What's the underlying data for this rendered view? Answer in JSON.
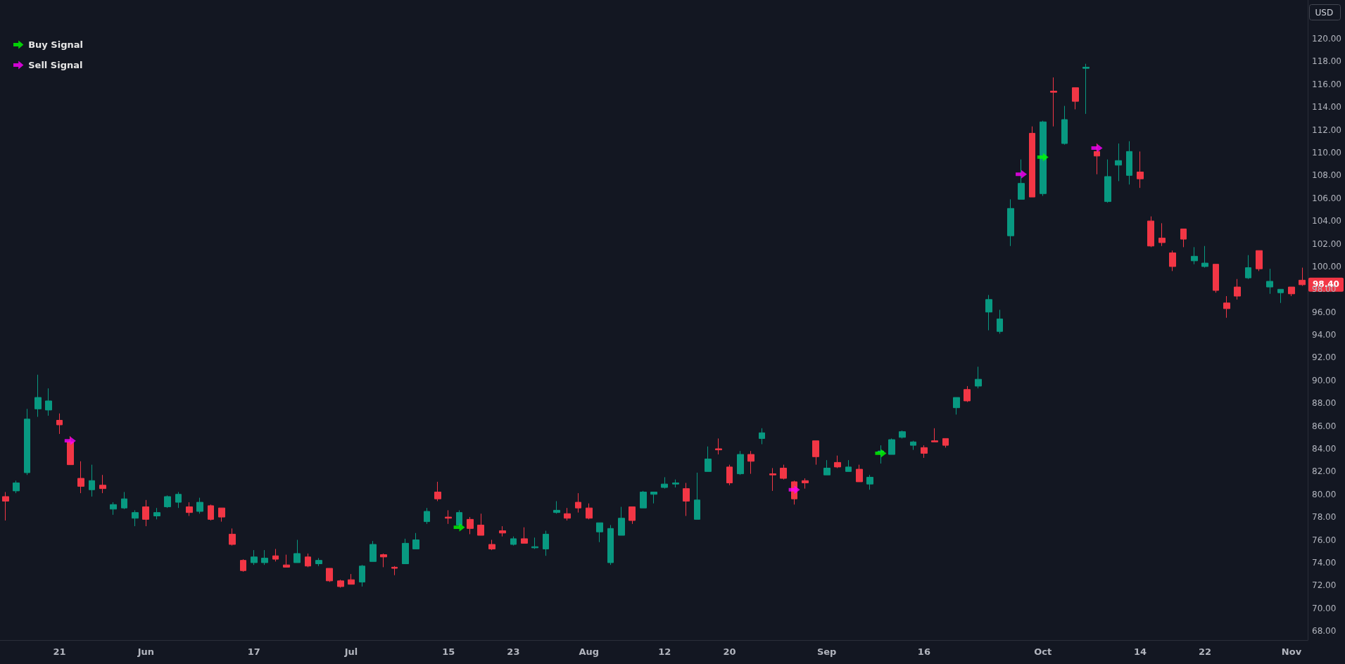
{
  "chart_data": {
    "type": "candlestick",
    "ylabel": "USD",
    "legend": "top left",
    "grid": false,
    "categories": [
      null,
      null,
      null,
      null,
      null,
      "21",
      null,
      null,
      null,
      null,
      null,
      null,
      null,
      "Jun",
      null,
      null,
      null,
      null,
      null,
      null,
      null,
      null,
      null,
      "17",
      null,
      null,
      null,
      null,
      null,
      null,
      null,
      null,
      "Jul",
      null,
      null,
      null,
      null,
      null,
      null,
      null,
      null,
      "15",
      null,
      null,
      null,
      null,
      null,
      "23",
      null,
      null,
      null,
      null,
      null,
      null,
      "Aug",
      null,
      null,
      null,
      null,
      null,
      null,
      "12",
      null,
      null,
      null,
      null,
      null,
      "20",
      null,
      null,
      null,
      null,
      null,
      null,
      null,
      null,
      "Sep",
      null,
      null,
      null,
      null,
      null,
      null,
      null,
      null,
      "16",
      null,
      null,
      null,
      null,
      null,
      null,
      null,
      null,
      null,
      null,
      "Oct",
      null,
      null,
      null,
      null,
      null,
      null,
      null,
      null,
      "14",
      null,
      null,
      null,
      null,
      null,
      "22",
      null,
      null,
      null,
      null,
      null,
      null,
      null,
      "Nov",
      null
    ],
    "ylim": [
      67.2,
      123.4
    ],
    "yticks": [
      {
        "value": 68,
        "label": "68.00"
      },
      {
        "value": 70,
        "label": "70.00"
      },
      {
        "value": 72,
        "label": "72.00"
      },
      {
        "value": 74,
        "label": "74.00"
      },
      {
        "value": 76,
        "label": "76.00"
      },
      {
        "value": 78,
        "label": "78.00"
      },
      {
        "value": 80,
        "label": "80.00"
      },
      {
        "value": 82,
        "label": "82.00"
      },
      {
        "value": 84,
        "label": "84.00"
      },
      {
        "value": 86,
        "label": "86.00"
      },
      {
        "value": 88,
        "label": "88.00"
      },
      {
        "value": 90,
        "label": "90.00"
      },
      {
        "value": 92,
        "label": "92.00"
      },
      {
        "value": 94,
        "label": "94.00"
      },
      {
        "value": 96,
        "label": "96.00"
      },
      {
        "value": 98,
        "label": "98.00"
      },
      {
        "value": 100,
        "label": "100.00"
      },
      {
        "value": 102,
        "label": "102.00"
      },
      {
        "value": 104,
        "label": "104.00"
      },
      {
        "value": 106,
        "label": "106.00"
      },
      {
        "value": 108,
        "label": "108.00"
      },
      {
        "value": 110,
        "label": "110.00"
      },
      {
        "value": 112,
        "label": "112.00"
      },
      {
        "value": 114,
        "label": "114.00"
      },
      {
        "value": 116,
        "label": "116.00"
      },
      {
        "value": 118,
        "label": "118.00"
      },
      {
        "value": 120,
        "label": "120.00"
      }
    ],
    "annotations": [
      "98.40"
    ],
    "series": [
      {
        "ohlc": [
          [
            79.8,
            80.2,
            77.7,
            79.4
          ],
          [
            80.3,
            81.2,
            80.1,
            81.0
          ],
          [
            81.9,
            87.5,
            81.7,
            86.6
          ],
          [
            87.5,
            90.5,
            86.8,
            88.5
          ],
          [
            87.4,
            89.3,
            86.9,
            88.2
          ],
          [
            86.5,
            87.1,
            85.3,
            86.1
          ],
          [
            84.6,
            85.1,
            82.6,
            82.6
          ],
          [
            81.4,
            82.9,
            80.1,
            80.7
          ],
          [
            80.4,
            82.6,
            79.8,
            81.2
          ],
          [
            80.8,
            81.7,
            80.1,
            80.5
          ],
          [
            78.7,
            79.3,
            78.2,
            79.1
          ],
          [
            78.8,
            80.2,
            78.7,
            79.6
          ],
          [
            77.9,
            78.6,
            77.2,
            78.4
          ],
          [
            78.9,
            79.5,
            77.2,
            77.8
          ],
          [
            78.1,
            78.8,
            77.8,
            78.4
          ],
          [
            78.9,
            79.9,
            78.8,
            79.8
          ],
          [
            79.3,
            80.2,
            78.8,
            80.0
          ],
          [
            78.9,
            79.3,
            78.1,
            78.4
          ],
          [
            78.5,
            79.7,
            78.3,
            79.3
          ],
          [
            79.0,
            79.1,
            77.7,
            77.8
          ],
          [
            78.8,
            78.8,
            77.6,
            78.0
          ],
          [
            76.5,
            77.0,
            75.5,
            75.6
          ],
          [
            74.2,
            74.3,
            73.2,
            73.3
          ],
          [
            74.0,
            75.1,
            73.8,
            74.5
          ],
          [
            74.0,
            75.1,
            73.8,
            74.4
          ],
          [
            74.6,
            75.2,
            74.1,
            74.3
          ],
          [
            73.8,
            74.7,
            73.6,
            73.6
          ],
          [
            74.0,
            76.0,
            74.0,
            74.8
          ],
          [
            74.5,
            74.8,
            73.6,
            73.7
          ],
          [
            73.9,
            74.4,
            73.7,
            74.2
          ],
          [
            73.5,
            73.5,
            72.3,
            72.4
          ],
          [
            72.4,
            72.5,
            71.8,
            71.9
          ],
          [
            72.5,
            73.0,
            72.1,
            72.1
          ],
          [
            72.3,
            73.8,
            71.9,
            73.7
          ],
          [
            74.1,
            75.9,
            74.1,
            75.6
          ],
          [
            74.7,
            74.8,
            73.6,
            74.5
          ],
          [
            73.6,
            73.7,
            72.9,
            73.5
          ],
          [
            73.9,
            76.1,
            73.9,
            75.7
          ],
          [
            75.2,
            76.6,
            75.2,
            76.0
          ],
          [
            77.6,
            78.8,
            77.4,
            78.5
          ],
          [
            80.2,
            81.1,
            79.4,
            79.6
          ],
          [
            78.0,
            78.6,
            77.4,
            77.9
          ],
          [
            77.3,
            78.6,
            77.1,
            78.4
          ],
          [
            77.8,
            78.0,
            76.5,
            77.0
          ],
          [
            77.3,
            78.3,
            76.4,
            76.4
          ],
          [
            75.6,
            76.0,
            75.1,
            75.2
          ],
          [
            76.8,
            77.2,
            76.3,
            76.6
          ],
          [
            75.6,
            76.3,
            75.5,
            76.1
          ],
          [
            76.1,
            77.1,
            75.7,
            75.7
          ],
          [
            75.3,
            76.2,
            75.2,
            75.4
          ],
          [
            75.2,
            76.8,
            74.6,
            76.5
          ],
          [
            78.4,
            79.4,
            78.3,
            78.6
          ],
          [
            78.3,
            78.8,
            77.7,
            77.9
          ],
          [
            79.3,
            80.1,
            78.4,
            78.8
          ],
          [
            78.8,
            79.2,
            77.8,
            77.9
          ],
          [
            76.7,
            77.5,
            75.8,
            77.5
          ],
          [
            74.0,
            77.3,
            73.8,
            77.0
          ],
          [
            76.4,
            78.9,
            76.4,
            77.9
          ],
          [
            78.9,
            78.9,
            77.4,
            77.7
          ],
          [
            78.8,
            80.3,
            78.8,
            80.2
          ],
          [
            80.0,
            80.2,
            79.2,
            80.2
          ],
          [
            80.6,
            81.5,
            80.5,
            80.9
          ],
          [
            80.9,
            81.3,
            80.6,
            81.0
          ],
          [
            80.5,
            81.0,
            78.1,
            79.4
          ],
          [
            77.8,
            81.9,
            77.8,
            79.5
          ],
          [
            82.0,
            84.2,
            82.0,
            83.1
          ],
          [
            84.0,
            84.9,
            83.5,
            83.9
          ],
          [
            82.4,
            82.6,
            80.8,
            81.0
          ],
          [
            81.8,
            83.8,
            81.7,
            83.5
          ],
          [
            83.5,
            83.8,
            81.8,
            82.9
          ],
          [
            84.9,
            85.8,
            84.4,
            85.4
          ],
          [
            81.8,
            82.3,
            80.3,
            81.7
          ],
          [
            82.3,
            82.6,
            81.3,
            81.4
          ],
          [
            81.1,
            81.2,
            79.1,
            79.6
          ],
          [
            81.2,
            81.4,
            80.5,
            81.0
          ],
          [
            84.7,
            84.7,
            82.6,
            83.3
          ],
          [
            81.7,
            83.0,
            81.7,
            82.3
          ],
          [
            82.8,
            83.4,
            82.3,
            82.4
          ],
          [
            82.0,
            83.0,
            82.0,
            82.4
          ],
          [
            82.2,
            82.6,
            81.1,
            81.1
          ],
          [
            80.9,
            81.7,
            80.4,
            81.5
          ],
          [
            83.7,
            84.3,
            82.7,
            83.8
          ],
          [
            83.5,
            84.9,
            83.5,
            84.8
          ],
          [
            85.0,
            85.6,
            84.9,
            85.5
          ],
          [
            84.3,
            84.7,
            83.9,
            84.6
          ],
          [
            84.1,
            84.3,
            83.2,
            83.6
          ],
          [
            84.7,
            85.8,
            84.6,
            84.6
          ],
          [
            84.9,
            84.9,
            84.1,
            84.3
          ],
          [
            87.6,
            88.5,
            87.0,
            88.5
          ],
          [
            89.2,
            89.5,
            88.1,
            88.2
          ],
          [
            89.5,
            91.2,
            89.3,
            90.1
          ],
          [
            96.0,
            97.5,
            94.4,
            97.1
          ],
          [
            94.3,
            96.2,
            94.1,
            95.4
          ],
          [
            102.7,
            105.9,
            101.8,
            105.1
          ],
          [
            105.9,
            109.4,
            105.9,
            107.3
          ],
          [
            111.7,
            112.3,
            106.1,
            106.1
          ],
          [
            106.4,
            112.8,
            106.2,
            112.7
          ],
          [
            115.4,
            116.6,
            112.3,
            115.3
          ],
          [
            110.8,
            114.1,
            110.7,
            112.9
          ],
          [
            115.7,
            115.7,
            113.8,
            114.5
          ],
          [
            117.4,
            117.8,
            113.4,
            117.5
          ],
          [
            110.1,
            110.8,
            108.1,
            109.7
          ],
          [
            105.7,
            109.4,
            105.6,
            107.9
          ],
          [
            108.9,
            110.8,
            107.5,
            109.3
          ],
          [
            108.0,
            111.0,
            107.2,
            110.1
          ],
          [
            108.3,
            110.1,
            106.9,
            107.7
          ],
          [
            104.0,
            104.4,
            101.7,
            101.8
          ],
          [
            102.5,
            103.8,
            101.8,
            102.1
          ],
          [
            101.2,
            101.4,
            99.6,
            100.0
          ],
          [
            103.3,
            103.3,
            101.7,
            102.4
          ],
          [
            100.5,
            101.7,
            100.2,
            100.9
          ],
          [
            100.0,
            101.8,
            99.9,
            100.3
          ],
          [
            100.2,
            100.2,
            97.7,
            97.9
          ],
          [
            96.8,
            97.4,
            95.5,
            96.3
          ],
          [
            98.2,
            98.9,
            97.1,
            97.4
          ],
          [
            99.0,
            101.0,
            98.9,
            99.9
          ],
          [
            101.4,
            101.4,
            99.6,
            99.8
          ],
          [
            98.2,
            99.8,
            97.6,
            98.7
          ],
          [
            97.7,
            98.0,
            96.8,
            98.0
          ],
          [
            98.2,
            98.2,
            97.4,
            97.6
          ],
          [
            98.8,
            99.9,
            98.3,
            98.4
          ]
        ],
        "colors": [
          "#f23645",
          "#089981",
          "#089981",
          "#089981",
          "#089981",
          "#f23645",
          "#f23645",
          "#f23645",
          "#089981",
          "#f23645",
          "#089981",
          "#089981",
          "#089981",
          "#f23645",
          "#089981",
          "#089981",
          "#089981",
          "#f23645",
          "#089981",
          "#f23645",
          "#f23645",
          "#f23645",
          "#f23645",
          "#089981",
          "#089981",
          "#f23645",
          "#f23645",
          "#089981",
          "#f23645",
          "#089981",
          "#f23645",
          "#f23645",
          "#f23645",
          "#089981",
          "#089981",
          "#f23645",
          "#f23645",
          "#089981",
          "#089981",
          "#089981",
          "#f23645",
          "#f23645",
          "#089981",
          "#f23645",
          "#f23645",
          "#f23645",
          "#f23645",
          "#089981",
          "#f23645",
          "#089981",
          "#089981",
          "#089981",
          "#f23645",
          "#f23645",
          "#f23645",
          "#089981",
          "#089981",
          "#089981",
          "#f23645",
          "#089981",
          "#089981",
          "#089981",
          "#089981",
          "#f23645",
          "#089981",
          "#089981",
          "#f23645",
          "#f23645",
          "#089981",
          "#f23645",
          "#089981",
          "#f23645",
          "#f23645",
          "#f23645",
          "#f23645",
          "#f23645",
          "#089981",
          "#f23645",
          "#089981",
          "#f23645",
          "#089981",
          "#089981",
          "#089981",
          "#089981",
          "#089981",
          "#f23645",
          "#f23645",
          "#f23645",
          "#089981",
          "#f23645",
          "#089981",
          "#089981",
          "#089981",
          "#089981",
          "#089981",
          "#f23645",
          "#089981",
          "#f23645",
          "#089981",
          "#f23645",
          "#089981",
          "#f23645",
          "#089981",
          "#089981",
          "#089981",
          "#f23645",
          "#f23645",
          "#f23645",
          "#f23645",
          "#f23645",
          "#089981",
          "#089981",
          "#f23645",
          "#f23645",
          "#f23645",
          "#089981",
          "#f23645",
          "#089981",
          "#089981",
          "#f23645",
          "#f23645"
        ]
      },
      {
        "type": "scatter",
        "name": "Buy Signal",
        "color": "#00ff00",
        "values": [
          null,
          null,
          null,
          null,
          null,
          null,
          null,
          null,
          null,
          null,
          null,
          null,
          null,
          null,
          null,
          null,
          null,
          null,
          null,
          null,
          null,
          null,
          null,
          null,
          null,
          null,
          null,
          null,
          null,
          null,
          null,
          null,
          null,
          null,
          null,
          null,
          null,
          null,
          null,
          null,
          null,
          null,
          77.1,
          null,
          null,
          null,
          null,
          null,
          null,
          null,
          null,
          null,
          null,
          null,
          null,
          null,
          null,
          null,
          null,
          null,
          null,
          null,
          null,
          null,
          null,
          null,
          null,
          null,
          null,
          null,
          null,
          null,
          null,
          null,
          null,
          null,
          null,
          null,
          null,
          null,
          null,
          83.6,
          null,
          null,
          null,
          null,
          null,
          null,
          null,
          null,
          null,
          null,
          null,
          null,
          null,
          null,
          109.6,
          null,
          null,
          null,
          null,
          null,
          null,
          null,
          null,
          null,
          null,
          null,
          null,
          null,
          null,
          null,
          null,
          null,
          null,
          null,
          null,
          null,
          null,
          null,
          null
        ]
      },
      {
        "type": "scatter",
        "name": "Sell Signal",
        "color": "#ff00ff",
        "values": [
          null,
          null,
          null,
          null,
          null,
          null,
          84.7,
          null,
          null,
          null,
          null,
          null,
          null,
          null,
          null,
          null,
          null,
          null,
          null,
          null,
          null,
          null,
          null,
          null,
          null,
          null,
          null,
          null,
          null,
          null,
          null,
          null,
          null,
          null,
          null,
          null,
          null,
          null,
          null,
          null,
          null,
          null,
          null,
          null,
          null,
          null,
          null,
          null,
          null,
          null,
          null,
          null,
          null,
          null,
          null,
          null,
          null,
          null,
          null,
          null,
          null,
          null,
          null,
          null,
          null,
          null,
          null,
          null,
          null,
          null,
          null,
          null,
          null,
          80.4,
          null,
          null,
          null,
          null,
          null,
          null,
          null,
          null,
          null,
          null,
          null,
          null,
          null,
          null,
          null,
          null,
          null,
          null,
          null,
          null,
          108.1,
          null,
          null,
          null,
          null,
          null,
          null,
          110.4,
          null,
          null,
          null,
          null,
          null,
          null,
          null,
          null,
          null,
          null,
          null,
          null,
          null,
          null,
          null,
          null,
          null,
          null,
          null
        ]
      }
    ]
  }
}
